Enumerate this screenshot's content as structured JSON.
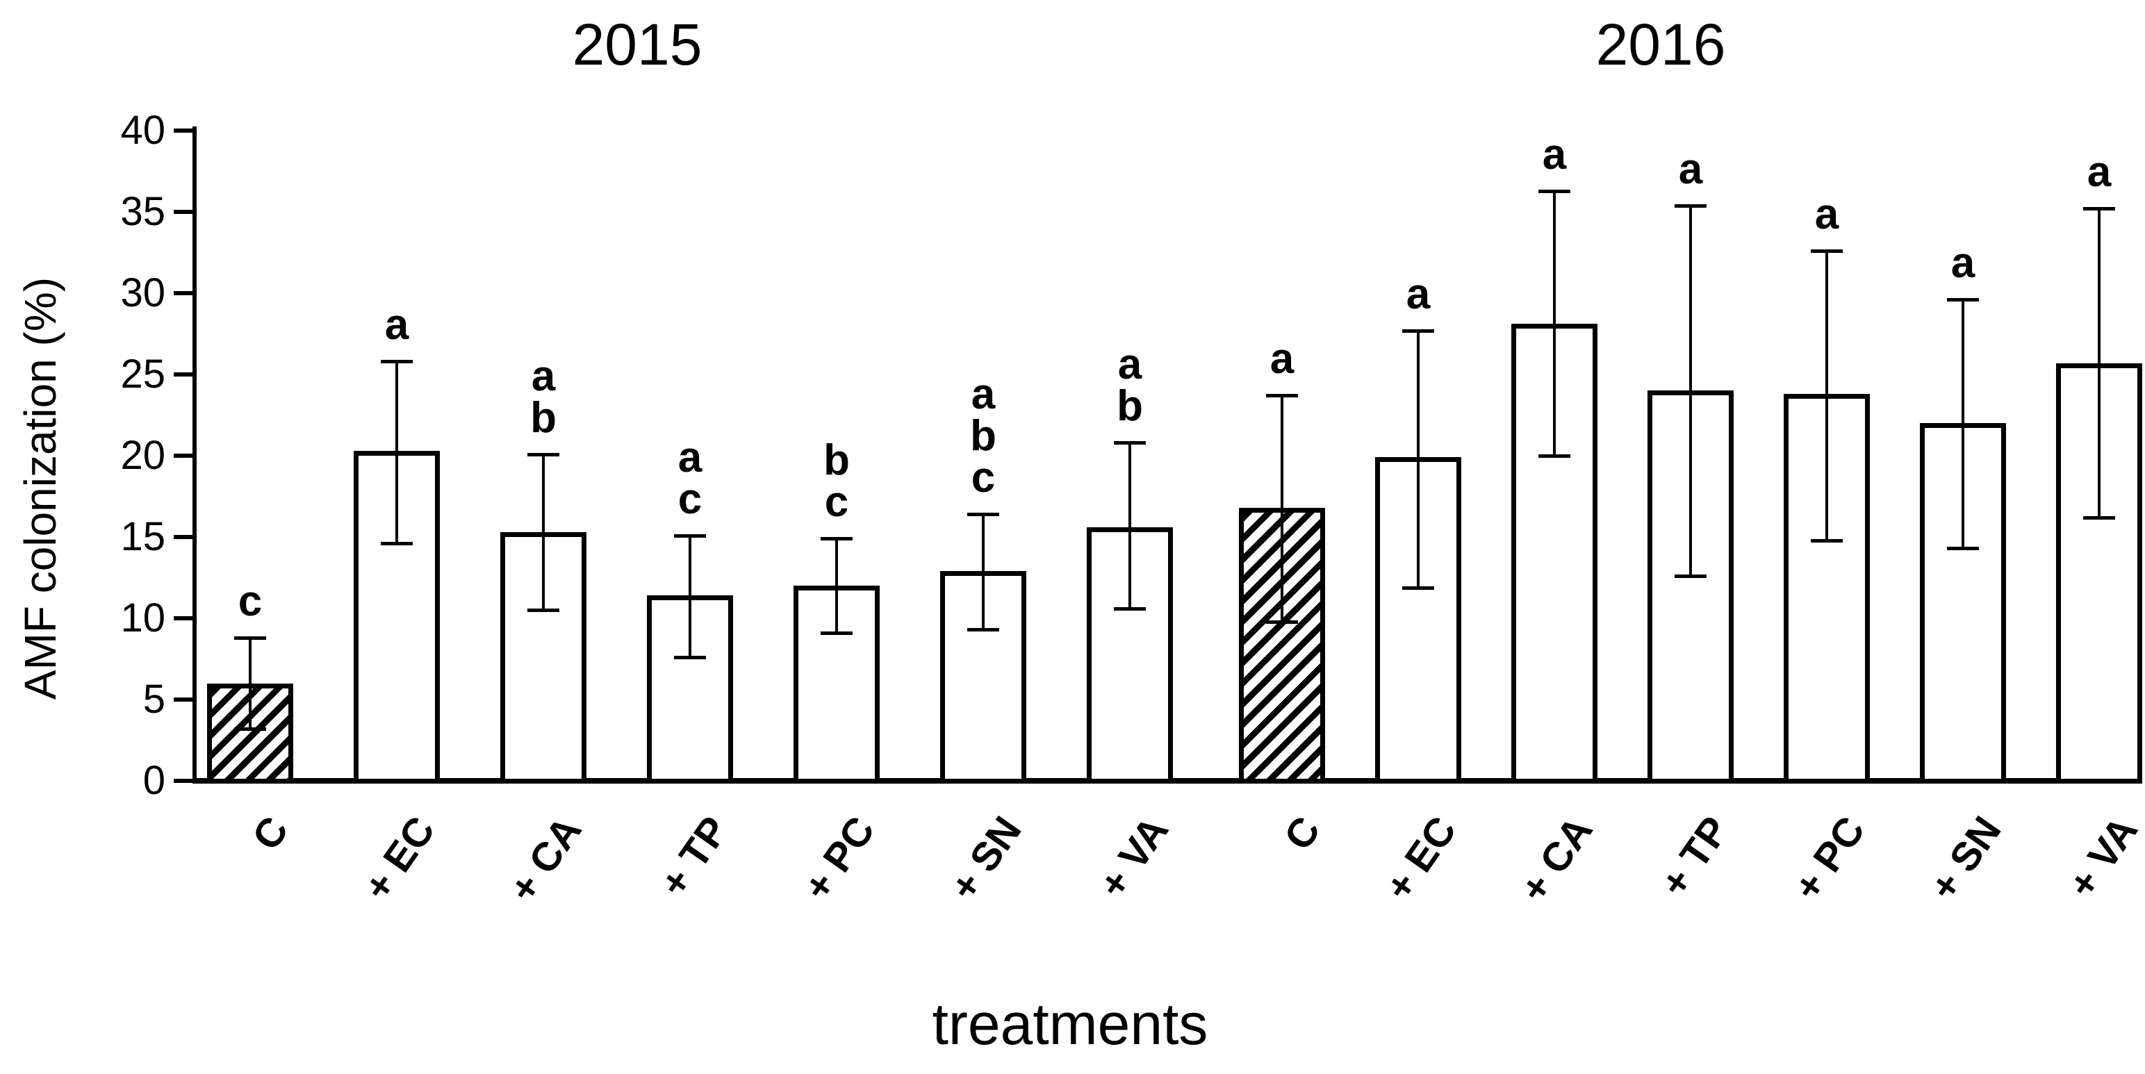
{
  "chart_data": {
    "type": "bar",
    "xlabel": "treatments",
    "ylabel": "AMF colonization (%)",
    "ylim": [
      0,
      40
    ],
    "yticks": [
      0,
      5,
      10,
      15,
      20,
      25,
      30,
      35,
      40
    ],
    "grid": false,
    "legend": "none",
    "categories": [
      "C",
      "+ EC",
      "+ CA",
      "+ TP",
      "+ PC",
      "+ SN",
      "+ VA"
    ],
    "error_bars": "both directions, capped",
    "groups": [
      {
        "label": "2015",
        "bars": [
          {
            "category": "C",
            "value": 6.0,
            "err_low": 3.2,
            "err_high": 8.8,
            "letters": [
              "c"
            ],
            "hatched": true
          },
          {
            "category": "+ EC",
            "value": 20.3,
            "err_low": 14.6,
            "err_high": 25.8,
            "letters": [
              "a"
            ],
            "hatched": false
          },
          {
            "category": "+ CA",
            "value": 15.3,
            "err_low": 10.5,
            "err_high": 20.1,
            "letters": [
              "a",
              "b"
            ],
            "hatched": false
          },
          {
            "category": "+ TP",
            "value": 11.4,
            "err_low": 7.6,
            "err_high": 15.1,
            "letters": [
              "a",
              "c"
            ],
            "hatched": false
          },
          {
            "category": "+ PC",
            "value": 12.0,
            "err_low": 9.1,
            "err_high": 14.9,
            "letters": [
              "b",
              "c"
            ],
            "hatched": false
          },
          {
            "category": "+ SN",
            "value": 12.9,
            "err_low": 9.3,
            "err_high": 16.4,
            "letters": [
              "a",
              "b",
              "c"
            ],
            "hatched": false
          },
          {
            "category": "+ VA",
            "value": 15.6,
            "err_low": 10.6,
            "err_high": 20.8,
            "letters": [
              "a",
              "b"
            ],
            "hatched": false
          }
        ]
      },
      {
        "label": "2016",
        "bars": [
          {
            "category": "C",
            "value": 16.8,
            "err_low": 9.8,
            "err_high": 23.7,
            "letters": [
              "a"
            ],
            "hatched": true
          },
          {
            "category": "+ EC",
            "value": 19.9,
            "err_low": 11.9,
            "err_high": 27.7,
            "letters": [
              "a"
            ],
            "hatched": false
          },
          {
            "category": "+ CA",
            "value": 28.1,
            "err_low": 20.0,
            "err_high": 36.3,
            "letters": [
              "a"
            ],
            "hatched": false
          },
          {
            "category": "+ TP",
            "value": 24.0,
            "err_low": 12.6,
            "err_high": 35.4,
            "letters": [
              "a"
            ],
            "hatched": false
          },
          {
            "category": "+ PC",
            "value": 23.8,
            "err_low": 14.8,
            "err_high": 32.6,
            "letters": [
              "a"
            ],
            "hatched": false
          },
          {
            "category": "+ SN",
            "value": 22.0,
            "err_low": 14.3,
            "err_high": 29.6,
            "letters": [
              "a"
            ],
            "hatched": false
          },
          {
            "category": "+ VA",
            "value": 25.7,
            "err_low": 16.2,
            "err_high": 35.2,
            "letters": [
              "a"
            ],
            "hatched": false
          }
        ]
      }
    ],
    "colors": {
      "bar_fill": "#ffffff",
      "bar_border": "#000000",
      "hatch": "#000000",
      "text": "#000000",
      "background": "#ffffff"
    }
  }
}
